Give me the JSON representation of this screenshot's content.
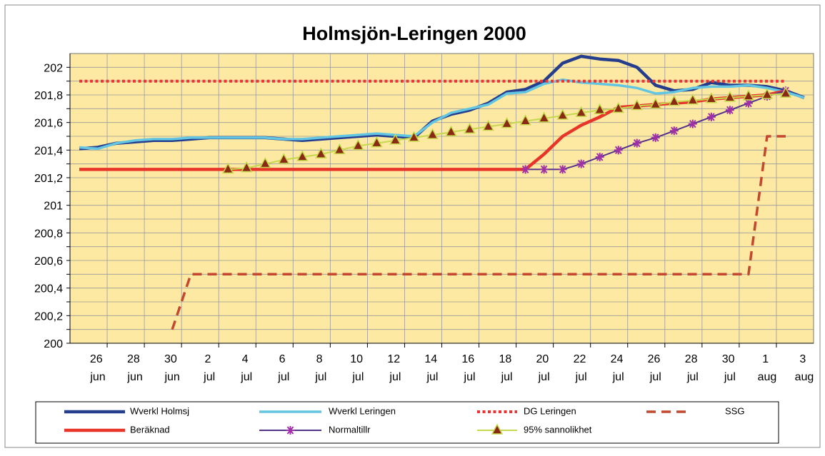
{
  "chart_data": {
    "type": "line",
    "title": "Holmsjön-Leringen 2000",
    "categories": [
      null,
      "26 jun",
      null,
      "28 jun",
      null,
      "30 jun",
      null,
      "2 jul",
      null,
      "4 jul",
      null,
      "6 jul",
      null,
      "8 jul",
      null,
      "10 jul",
      null,
      "12 jul",
      null,
      "14 jul",
      null,
      "16 jul",
      null,
      "18 jul",
      null,
      "20 jul",
      null,
      "22 jul",
      null,
      "24 jul",
      null,
      "26 jul",
      null,
      "28 jul",
      null,
      "30 jul",
      null,
      "1 aug",
      null,
      "3 aug"
    ],
    "ylim": [
      200,
      202.1
    ],
    "yticks": [
      200,
      {
        "value": 200.2,
        "label": "200,2"
      },
      {
        "value": 200.4,
        "label": "200,4"
      },
      {
        "value": 200.6,
        "label": "200,6"
      },
      {
        "value": 200.8,
        "label": "200,8"
      },
      201,
      {
        "value": 201.2,
        "label": "201,2"
      },
      {
        "value": 201.4,
        "label": "201,4"
      },
      {
        "value": 201.6,
        "label": "201,6"
      },
      {
        "value": 201.8,
        "label": "201,8"
      },
      202
    ],
    "minor_grid": [
      200.1,
      200.3,
      200.5,
      200.7,
      200.9,
      201.1,
      201.3,
      201.5,
      201.7,
      201.9
    ],
    "grid": true,
    "plot_background": "#fde9a2",
    "legend": "bottom",
    "series": [
      {
        "name": "Wverkl Holmsj",
        "color": "#243d8c",
        "line_style": "solid",
        "values": [
          201.41,
          201.42,
          201.45,
          201.46,
          201.47,
          201.47,
          201.48,
          201.49,
          201.49,
          201.49,
          201.49,
          201.48,
          201.47,
          201.48,
          201.49,
          201.5,
          201.51,
          201.5,
          201.49,
          201.61,
          201.66,
          201.69,
          201.74,
          201.82,
          201.84,
          201.9,
          202.03,
          202.08,
          202.06,
          202.05,
          202.0,
          201.87,
          201.83,
          201.84,
          201.89,
          201.87,
          201.87,
          201.86,
          201.83,
          201.78
        ]
      },
      {
        "name": "Wverkl Leringen",
        "color": "#62c6e2",
        "line_style": "solid",
        "values": [
          201.42,
          201.41,
          201.45,
          201.47,
          201.48,
          201.48,
          201.49,
          201.49,
          201.49,
          201.49,
          201.49,
          201.48,
          201.48,
          201.49,
          201.5,
          201.51,
          201.52,
          201.51,
          201.5,
          201.6,
          201.67,
          201.7,
          201.73,
          201.81,
          201.82,
          201.88,
          201.91,
          201.89,
          201.88,
          201.87,
          201.85,
          201.81,
          201.82,
          201.85,
          201.86,
          201.86,
          201.87,
          201.85,
          201.82,
          201.78
        ]
      },
      {
        "name": "DG Leringen",
        "color": "#ee3333",
        "line_style": "dotted",
        "values": [
          201.9,
          201.9,
          201.9,
          201.9,
          201.9,
          201.9,
          201.9,
          201.9,
          201.9,
          201.9,
          201.9,
          201.9,
          201.9,
          201.9,
          201.9,
          201.9,
          201.9,
          201.9,
          201.9,
          201.9,
          201.9,
          201.9,
          201.9,
          201.9,
          201.9,
          201.9,
          201.9,
          201.9,
          201.9,
          201.9,
          201.9,
          201.9,
          201.9,
          201.9,
          201.9,
          201.9,
          201.9,
          201.9,
          201.9,
          null
        ]
      },
      {
        "name": "SSG",
        "color": "#c4482f",
        "line_style": "dashed",
        "values": [
          null,
          null,
          null,
          null,
          null,
          200.1,
          200.5,
          200.5,
          200.5,
          200.5,
          200.5,
          200.5,
          200.5,
          200.5,
          200.5,
          200.5,
          200.5,
          200.5,
          200.5,
          200.5,
          200.5,
          200.5,
          200.5,
          200.5,
          200.5,
          200.5,
          200.5,
          200.5,
          200.5,
          200.5,
          200.5,
          200.5,
          200.5,
          200.5,
          200.5,
          200.5,
          200.5,
          201.5,
          201.5,
          null
        ]
      },
      {
        "name": "Beräknad",
        "color": "#e8352a",
        "line_style": "solid",
        "values": [
          201.26,
          201.26,
          201.26,
          201.26,
          201.26,
          201.26,
          201.26,
          201.26,
          201.26,
          201.26,
          201.26,
          201.26,
          201.26,
          201.26,
          201.26,
          201.26,
          201.26,
          201.26,
          201.26,
          201.26,
          201.26,
          201.26,
          201.26,
          201.26,
          201.26,
          201.37,
          201.5,
          201.58,
          201.64,
          201.71,
          201.72,
          201.73,
          201.74,
          201.75,
          201.77,
          201.78,
          201.79,
          201.8,
          201.83,
          null
        ]
      },
      {
        "name": "Normaltillr",
        "color": "#55308c",
        "marker": "asterisk",
        "marker_color": "#a030a8",
        "line_style": "solid",
        "values": [
          null,
          null,
          null,
          null,
          null,
          null,
          null,
          null,
          null,
          null,
          null,
          null,
          null,
          null,
          null,
          null,
          null,
          null,
          null,
          null,
          null,
          null,
          null,
          null,
          201.26,
          201.26,
          201.26,
          201.3,
          201.35,
          201.4,
          201.45,
          201.49,
          201.54,
          201.59,
          201.64,
          201.69,
          201.74,
          201.79,
          201.83,
          null
        ]
      },
      {
        "name": "95% sannolikhet",
        "color": "#c6d84e",
        "marker": "triangle",
        "marker_color": "#8b2a14",
        "line_style": "solid",
        "values": [
          null,
          null,
          null,
          null,
          null,
          null,
          null,
          null,
          201.26,
          201.27,
          201.3,
          201.33,
          201.35,
          201.37,
          201.4,
          201.43,
          201.45,
          201.47,
          201.49,
          201.51,
          201.53,
          201.55,
          201.57,
          201.59,
          201.61,
          201.63,
          201.65,
          201.67,
          201.69,
          201.7,
          201.72,
          201.73,
          201.75,
          201.76,
          201.77,
          201.78,
          201.79,
          201.8,
          201.81,
          null
        ]
      }
    ]
  }
}
